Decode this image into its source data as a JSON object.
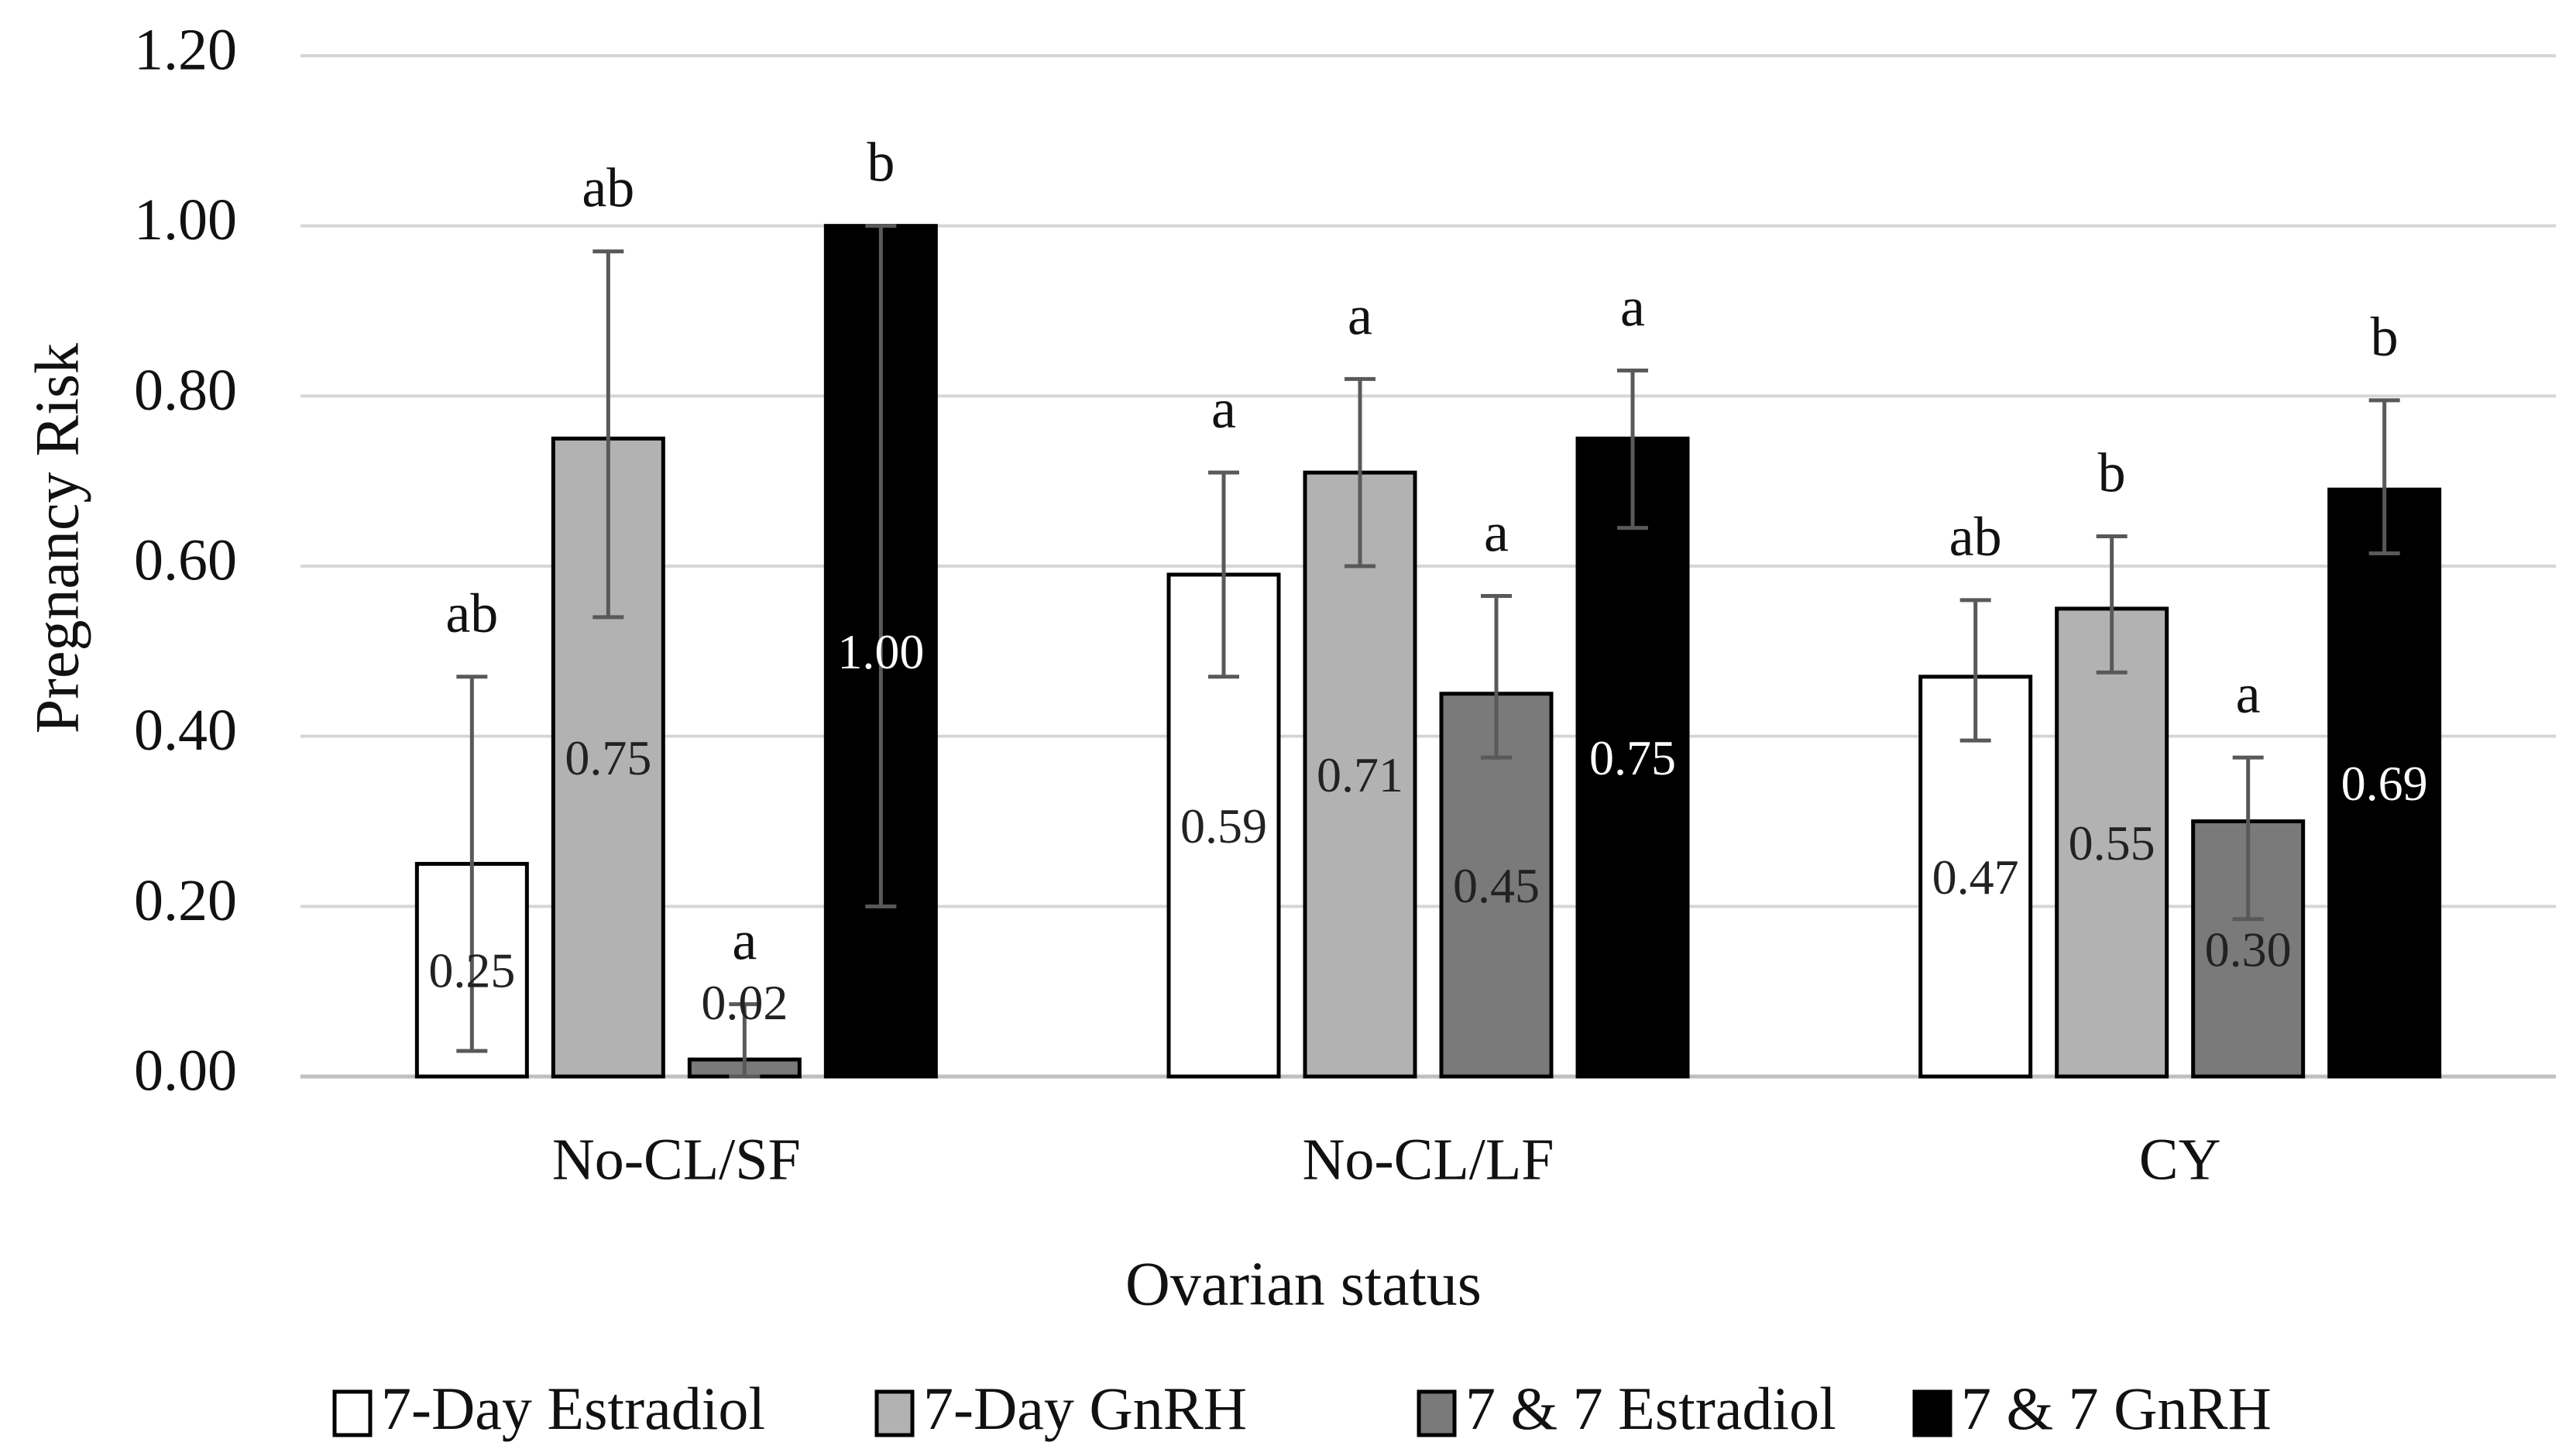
{
  "chart_data": {
    "type": "bar",
    "title": "",
    "xlabel": "Ovarian status",
    "ylabel": "Pregnancy Risk",
    "ylim": [
      0,
      1.2
    ],
    "yticks": [
      "0.00",
      "0.20",
      "0.40",
      "0.60",
      "0.80",
      "1.00",
      "1.20"
    ],
    "grid": true,
    "legend_position": "bottom",
    "categories": [
      "No-CL/SF",
      "No-CL/LF",
      "CY"
    ],
    "series": [
      {
        "name": "7-Day Estradiol",
        "color": "#ffffff",
        "label_color": "#222222",
        "values": [
          0.25,
          0.59,
          0.47
        ],
        "value_labels": [
          "0.25",
          "0.59",
          "0.47"
        ],
        "err_low": [
          0.03,
          0.47,
          0.395
        ],
        "err_high": [
          0.47,
          0.71,
          0.56
        ],
        "letters": [
          "ab",
          "a",
          "ab"
        ]
      },
      {
        "name": "7-Day GnRH",
        "color": "#b2b2b2",
        "label_color": "#222222",
        "values": [
          0.75,
          0.71,
          0.55
        ],
        "value_labels": [
          "0.75",
          "0.71",
          "0.55"
        ],
        "err_low": [
          0.54,
          0.6,
          0.475
        ],
        "err_high": [
          0.97,
          0.82,
          0.635
        ],
        "letters": [
          "ab",
          "a",
          "b"
        ]
      },
      {
        "name": "7 & 7 Estradiol",
        "color": "#7a7a7a",
        "label_color": "#222222",
        "values": [
          0.02,
          0.45,
          0.3
        ],
        "value_labels": [
          "0.02",
          "0.45",
          "0.30"
        ],
        "err_low": [
          0.0,
          0.375,
          0.185
        ],
        "err_high": [
          0.085,
          0.565,
          0.375
        ],
        "letters": [
          "a",
          "a",
          "a"
        ]
      },
      {
        "name": "7 & 7 GnRH",
        "color": "#000000",
        "label_color": "#ffffff",
        "values": [
          1.0,
          0.75,
          0.69
        ],
        "value_labels": [
          "1.00",
          "0.75",
          "0.69"
        ],
        "err_low": [
          0.2,
          0.645,
          0.615
        ],
        "err_high": [
          1.0,
          0.83,
          0.795
        ],
        "letters": [
          "b",
          "a",
          "b"
        ]
      }
    ]
  }
}
